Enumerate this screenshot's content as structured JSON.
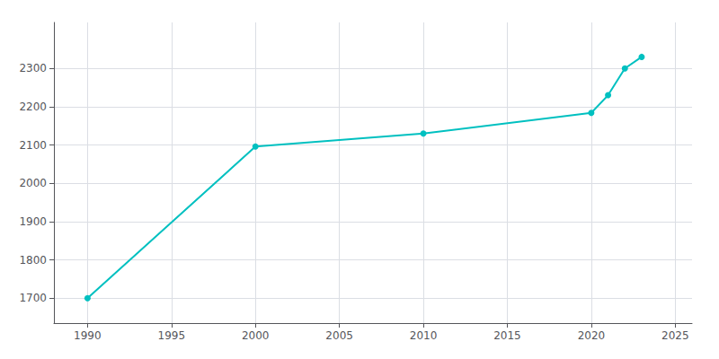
{
  "chart_data": {
    "type": "line",
    "x": [
      1990,
      2000,
      2010,
      2020,
      2021,
      2022,
      2023
    ],
    "values": [
      1700,
      2096,
      2130,
      2184,
      2230,
      2300,
      2330
    ],
    "color": "#00C0C0",
    "marker": "circle",
    "xlim": [
      1988,
      2026
    ],
    "xticks": [
      1990,
      1995,
      2000,
      2005,
      2010,
      2015,
      2020,
      2025
    ],
    "ylim": [
      1635,
      2420
    ],
    "yticks": [
      1700,
      1800,
      1900,
      2000,
      2100,
      2200,
      2300
    ],
    "grid": true
  }
}
